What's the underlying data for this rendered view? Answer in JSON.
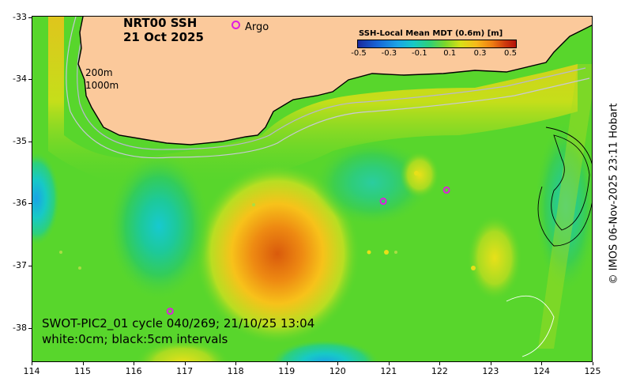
{
  "map": {
    "title_line1": "NRT00 SSH",
    "title_line2": "21 Oct 2025",
    "argo_legend_label": "Argo",
    "isobath_label_1": "200m",
    "isobath_label_2": "1000m",
    "swot_line1": "SWOT-PIC2_01 cycle 040/269; 21/10/25 13:04",
    "swot_line2": "white:0cm; black:5cm intervals",
    "copyright": "© IMOS 06-Nov-2025 23:11 Hobart"
  },
  "colorbar": {
    "title": "SSH-Local Mean MDT (0.6m) [m]",
    "ticks": [
      "-0.5",
      "-0.3",
      "-0.1",
      "0.1",
      "0.3",
      "0.5"
    ],
    "colors": [
      "#1b2a9e",
      "#1663d6",
      "#1aa3e6",
      "#17c9c6",
      "#2dd07a",
      "#7ad62c",
      "#d8e017",
      "#f7b91a",
      "#ee7d12",
      "#cf3b0d",
      "#b3120b"
    ]
  },
  "axes": {
    "lon_ticks": [
      "114",
      "115",
      "116",
      "117",
      "118",
      "119",
      "120",
      "121",
      "122",
      "123",
      "124",
      "125"
    ],
    "lat_ticks": [
      "-33",
      "-34",
      "-35",
      "-36",
      "-37",
      "-38"
    ],
    "lon_range": [
      114,
      125
    ],
    "lat_range": [
      -38.55,
      -32.98
    ]
  },
  "argo_floats": [
    {
      "lon": 116.7,
      "lat": -37.72
    },
    {
      "lon": 120.88,
      "lat": -35.95
    },
    {
      "lon": 122.12,
      "lat": -35.77
    }
  ],
  "colors": {
    "land": "#fbc99b",
    "ocean_base": "#58d62c",
    "argo": "#e01ee0"
  }
}
